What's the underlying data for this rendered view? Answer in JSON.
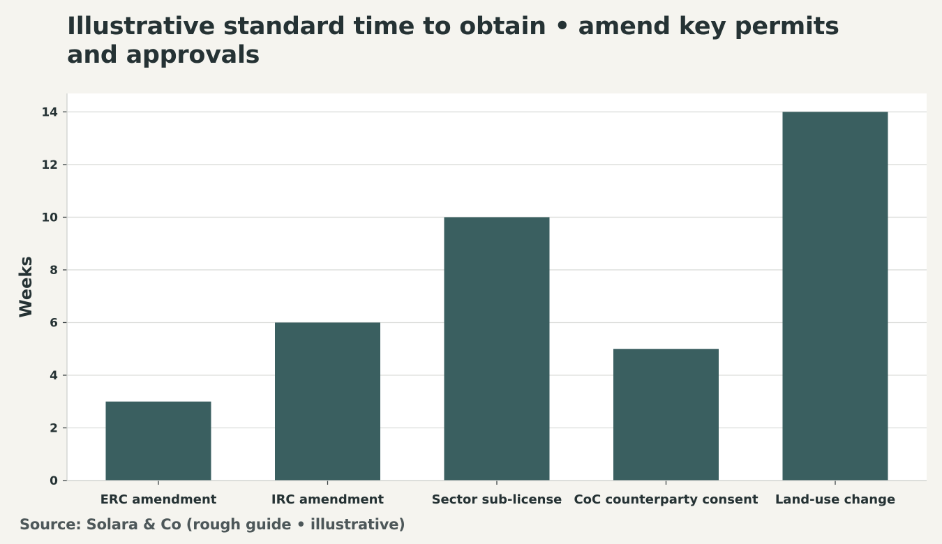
{
  "chart_data": {
    "type": "bar",
    "title": "Illustrative standard time to obtain • amend key permits and approvals",
    "xlabel": "",
    "ylabel": "Weeks",
    "categories": [
      "ERC amendment",
      "IRC amendment",
      "Sector sub-license",
      "CoC counterparty consent",
      "Land-use change"
    ],
    "values": [
      3,
      6,
      10,
      5,
      14
    ],
    "ylim": [
      0,
      14.7
    ],
    "yticks": [
      0,
      2,
      4,
      6,
      8,
      10,
      12,
      14
    ],
    "grid": true,
    "legend": "none",
    "source": "Source: Solara & Co (rough guide • illustrative)"
  },
  "colors": {
    "background": "#f5f4ef",
    "plot_background": "#ffffff",
    "bar": "#3a5f60",
    "grid": "#dcdddb",
    "text": "#253234",
    "source_text": "#4d5759"
  }
}
